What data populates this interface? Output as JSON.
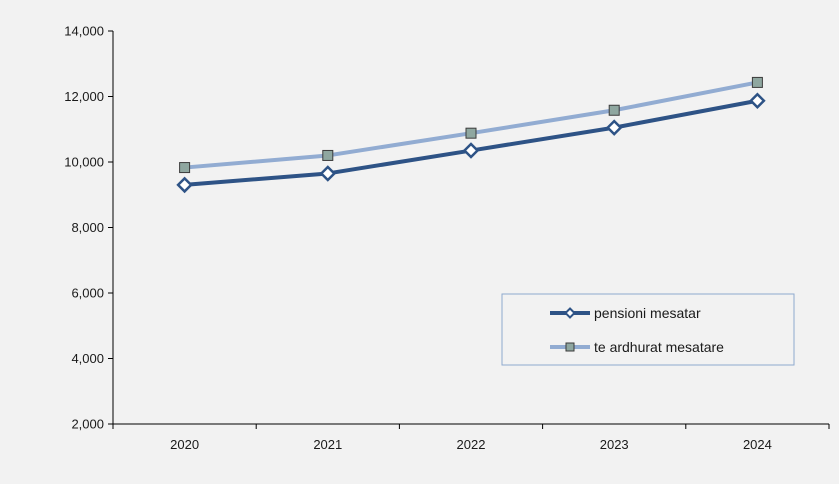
{
  "chart_data": {
    "type": "line",
    "title": "",
    "xlabel": "",
    "ylabel": "",
    "categories": [
      "2020",
      "2021",
      "2022",
      "2023",
      "2024"
    ],
    "y_ticks": [
      "2,000",
      "4,000",
      "6,000",
      "8,000",
      "10,000",
      "12,000",
      "14,000"
    ],
    "ylim": [
      2000,
      14000
    ],
    "grid": false,
    "legend_position": "bottom-right",
    "series": [
      {
        "name": "pensioni mesatar",
        "values": [
          9300,
          9650,
          10350,
          11050,
          11870
        ],
        "color": "#2e5386",
        "marker": "diamond"
      },
      {
        "name": "te ardhurat mesatare",
        "values": [
          9830,
          10200,
          10880,
          11580,
          12430
        ],
        "color": "#92acd2",
        "marker": "square"
      }
    ]
  }
}
